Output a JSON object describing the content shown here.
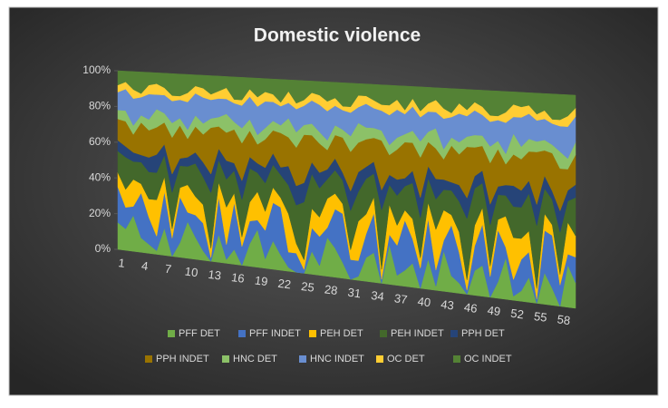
{
  "chart_data": {
    "type": "area",
    "stacked": true,
    "title": "Domestic violence",
    "categories": [
      1,
      null,
      null,
      4,
      null,
      null,
      7,
      null,
      null,
      10,
      null,
      null,
      13,
      null,
      null,
      16,
      null,
      null,
      19,
      null,
      null,
      22,
      null,
      null,
      25,
      null,
      null,
      28,
      null,
      null,
      31,
      null,
      null,
      34,
      null,
      null,
      37,
      null,
      null,
      40,
      null,
      null,
      43,
      null,
      null,
      46,
      null,
      null,
      49,
      null,
      null,
      52,
      null,
      null,
      55,
      null,
      null,
      58,
      null,
      null
    ],
    "ylim": [
      0,
      100
    ],
    "yticks": [
      {
        "value": 0,
        "label": "0%"
      },
      {
        "value": 20,
        "label": "20%"
      },
      {
        "value": 40,
        "label": "40%"
      },
      {
        "value": 60,
        "label": "60%"
      },
      {
        "value": 80,
        "label": "80%"
      },
      {
        "value": 100,
        "label": "100%"
      }
    ],
    "legend": "bottom",
    "series": [
      {
        "name": "PFF DET",
        "color": "#70ad47",
        "values": [
          15,
          12,
          20,
          8,
          5,
          2,
          15,
          0,
          8,
          20,
          12,
          5,
          0,
          15,
          2,
          8,
          0,
          12,
          20,
          5,
          15,
          8,
          2,
          0,
          0,
          12,
          5,
          20,
          15,
          8,
          0,
          2,
          12,
          15,
          0,
          20,
          5,
          8,
          12,
          0,
          15,
          2,
          20,
          8,
          5,
          0,
          12,
          15,
          0,
          8,
          20,
          2,
          5,
          12,
          0,
          15,
          8,
          0,
          20,
          12
        ]
      },
      {
        "name": "PFF INDET",
        "color": "#4472c4",
        "values": [
          20,
          12,
          5,
          25,
          15,
          8,
          20,
          10,
          25,
          5,
          12,
          15,
          2,
          20,
          8,
          25,
          10,
          12,
          5,
          15,
          20,
          25,
          8,
          10,
          2,
          12,
          15,
          5,
          20,
          25,
          10,
          8,
          12,
          20,
          2,
          5,
          15,
          25,
          12,
          10,
          20,
          8,
          5,
          25,
          15,
          2,
          12,
          20,
          10,
          25,
          5,
          8,
          15,
          12,
          2,
          20,
          25,
          10,
          5,
          12
        ]
      },
      {
        "name": "PEH DET",
        "color": "#ffc000",
        "values": [
          8,
          10,
          15,
          5,
          10,
          20,
          8,
          5,
          5,
          15,
          10,
          10,
          5,
          8,
          20,
          5,
          5,
          10,
          15,
          10,
          8,
          5,
          20,
          5,
          5,
          10,
          10,
          15,
          8,
          5,
          5,
          20,
          10,
          8,
          5,
          15,
          10,
          5,
          10,
          5,
          8,
          20,
          15,
          5,
          10,
          5,
          10,
          8,
          5,
          5,
          15,
          20,
          10,
          10,
          5,
          8,
          5,
          5,
          15,
          10
        ]
      },
      {
        "name": "PEH INDET",
        "color": "#43682b",
        "values": [
          12,
          18,
          10,
          12,
          15,
          15,
          12,
          20,
          12,
          10,
          18,
          15,
          30,
          12,
          15,
          12,
          20,
          18,
          10,
          15,
          12,
          12,
          15,
          20,
          30,
          18,
          15,
          10,
          12,
          12,
          20,
          15,
          18,
          12,
          30,
          10,
          15,
          12,
          18,
          20,
          12,
          15,
          10,
          12,
          15,
          30,
          18,
          12,
          20,
          12,
          10,
          15,
          15,
          18,
          30,
          12,
          12,
          20,
          10,
          18
        ]
      },
      {
        "name": "PPH DET",
        "color": "#264478",
        "values": [
          6,
          6,
          5,
          4,
          8,
          10,
          6,
          10,
          4,
          5,
          6,
          8,
          10,
          6,
          10,
          4,
          10,
          6,
          5,
          8,
          6,
          4,
          10,
          10,
          10,
          6,
          8,
          5,
          6,
          4,
          10,
          10,
          6,
          6,
          10,
          5,
          8,
          4,
          6,
          10,
          6,
          10,
          5,
          4,
          8,
          10,
          6,
          6,
          10,
          4,
          5,
          10,
          8,
          6,
          10,
          6,
          4,
          10,
          5,
          6
        ]
      },
      {
        "name": "PPH INDET",
        "color": "#997300",
        "values": [
          12,
          14,
          10,
          18,
          15,
          15,
          12,
          20,
          18,
          10,
          14,
          15,
          25,
          12,
          15,
          18,
          20,
          14,
          10,
          15,
          12,
          18,
          15,
          20,
          25,
          14,
          15,
          10,
          12,
          18,
          20,
          15,
          14,
          12,
          25,
          10,
          15,
          18,
          14,
          20,
          12,
          15,
          10,
          18,
          15,
          25,
          14,
          12,
          20,
          18,
          10,
          15,
          15,
          14,
          25,
          12,
          18,
          20,
          10,
          14
        ]
      },
      {
        "name": "HNC DET",
        "color": "#8cc168",
        "values": [
          5,
          6,
          5,
          4,
          6,
          10,
          5,
          8,
          4,
          5,
          6,
          6,
          5,
          5,
          10,
          4,
          8,
          6,
          5,
          6,
          5,
          4,
          10,
          8,
          5,
          6,
          6,
          5,
          5,
          4,
          8,
          10,
          6,
          5,
          5,
          5,
          6,
          4,
          6,
          8,
          5,
          10,
          5,
          4,
          6,
          5,
          6,
          5,
          8,
          4,
          5,
          10,
          6,
          6,
          5,
          5,
          4,
          8,
          5,
          6
        ]
      },
      {
        "name": "HNC INDET",
        "color": "#698ed0",
        "values": [
          10,
          12,
          15,
          10,
          14,
          8,
          10,
          12,
          10,
          15,
          12,
          14,
          10,
          10,
          8,
          10,
          12,
          12,
          15,
          14,
          10,
          10,
          8,
          12,
          10,
          12,
          14,
          15,
          10,
          10,
          12,
          8,
          12,
          10,
          10,
          15,
          14,
          10,
          12,
          12,
          10,
          8,
          15,
          10,
          14,
          10,
          12,
          10,
          12,
          10,
          15,
          8,
          14,
          12,
          10,
          10,
          10,
          12,
          15,
          12
        ]
      },
      {
        "name": "OC DET",
        "color": "#ffcd33",
        "values": [
          4,
          4,
          5,
          2,
          5,
          6,
          4,
          3,
          2,
          5,
          4,
          5,
          3,
          4,
          6,
          2,
          3,
          4,
          5,
          5,
          4,
          2,
          6,
          3,
          3,
          4,
          5,
          5,
          4,
          2,
          3,
          6,
          4,
          4,
          3,
          5,
          5,
          2,
          4,
          3,
          4,
          6,
          5,
          2,
          5,
          3,
          4,
          4,
          3,
          2,
          5,
          6,
          5,
          4,
          3,
          4,
          2,
          3,
          5,
          4
        ]
      },
      {
        "name": "OC INDET",
        "color": "#548235",
        "values": [
          8,
          6,
          10,
          12,
          7,
          6,
          8,
          12,
          12,
          10,
          6,
          7,
          10,
          8,
          6,
          12,
          12,
          6,
          10,
          7,
          8,
          12,
          6,
          12,
          10,
          6,
          7,
          10,
          8,
          12,
          12,
          6,
          6,
          8,
          10,
          10,
          7,
          12,
          6,
          12,
          8,
          6,
          10,
          12,
          7,
          10,
          6,
          8,
          12,
          12,
          10,
          6,
          7,
          6,
          10,
          8,
          12,
          12,
          10,
          6
        ]
      }
    ]
  }
}
